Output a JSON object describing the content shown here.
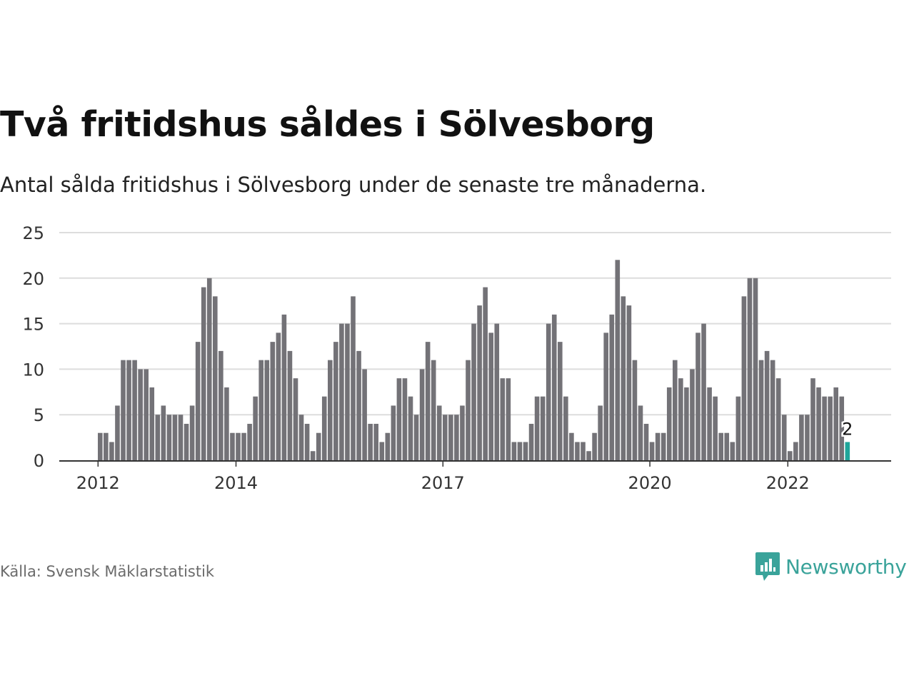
{
  "header": {
    "title": "Två fritidshus såldes i Sölvesborg",
    "subtitle": "Antal sålda fritidshus i Sölvesborg under de senaste tre månaderna."
  },
  "footer": {
    "source": "Källa: Svensk Mäklarstatistik",
    "brand": "Newsworthy"
  },
  "colors": {
    "bar": "#737277",
    "highlight": "#1fa59a",
    "grid": "#dddddd",
    "axis": "#333333",
    "brand": "#3aa39a"
  },
  "chart_data": {
    "type": "bar",
    "y_ticks": [
      0,
      5,
      10,
      15,
      20,
      25
    ],
    "ylim": [
      0,
      25
    ],
    "grid": true,
    "x_tick_labels": [
      {
        "label": "2012",
        "index": 0
      },
      {
        "label": "2014",
        "index": 24
      },
      {
        "label": "2017",
        "index": 60
      },
      {
        "label": "2020",
        "index": 96
      },
      {
        "label": "2022",
        "index": 120
      }
    ],
    "values": [
      3,
      3,
      2,
      6,
      11,
      11,
      11,
      10,
      10,
      8,
      5,
      6,
      5,
      5,
      5,
      4,
      6,
      13,
      19,
      20,
      18,
      12,
      8,
      3,
      3,
      3,
      4,
      7,
      11,
      11,
      13,
      14,
      16,
      12,
      9,
      5,
      4,
      1,
      3,
      7,
      11,
      13,
      15,
      15,
      18,
      12,
      10,
      4,
      4,
      2,
      3,
      6,
      9,
      9,
      7,
      5,
      10,
      13,
      11,
      6,
      5,
      5,
      5,
      6,
      11,
      15,
      17,
      19,
      14,
      15,
      9,
      9,
      2,
      2,
      2,
      4,
      7,
      7,
      15,
      16,
      13,
      7,
      3,
      2,
      2,
      1,
      3,
      6,
      14,
      16,
      22,
      18,
      17,
      11,
      6,
      4,
      2,
      3,
      3,
      8,
      11,
      9,
      8,
      10,
      14,
      15,
      8,
      7,
      3,
      3,
      2,
      7,
      18,
      20,
      20,
      11,
      12,
      11,
      9,
      5,
      1,
      2,
      5,
      5,
      9,
      8,
      7,
      7,
      8,
      7,
      2
    ],
    "highlight_index": 130,
    "highlight_label": "2"
  }
}
